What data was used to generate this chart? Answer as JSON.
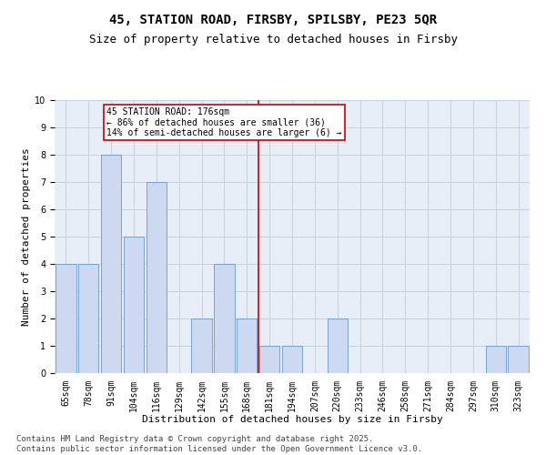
{
  "title_line1": "45, STATION ROAD, FIRSBY, SPILSBY, PE23 5QR",
  "title_line2": "Size of property relative to detached houses in Firsby",
  "xlabel": "Distribution of detached houses by size in Firsby",
  "ylabel": "Number of detached properties",
  "categories": [
    "65sqm",
    "78sqm",
    "91sqm",
    "104sqm",
    "116sqm",
    "129sqm",
    "142sqm",
    "155sqm",
    "168sqm",
    "181sqm",
    "194sqm",
    "207sqm",
    "220sqm",
    "233sqm",
    "246sqm",
    "258sqm",
    "271sqm",
    "284sqm",
    "297sqm",
    "310sqm",
    "323sqm"
  ],
  "values": [
    4,
    4,
    8,
    5,
    7,
    0,
    2,
    4,
    2,
    1,
    1,
    0,
    2,
    0,
    0,
    0,
    0,
    0,
    0,
    1,
    1
  ],
  "bar_color": "#ccd9f0",
  "bar_edge_color": "#6699cc",
  "grid_color": "#c8d0dc",
  "bg_color": "#e8eef8",
  "ref_line_color": "#cc0000",
  "annotation_line1": "45 STATION ROAD: 176sqm",
  "annotation_line2": "← 86% of detached houses are smaller (36)",
  "annotation_line3": "14% of semi-detached houses are larger (6) →",
  "ref_line_index": 8.5,
  "ylim": [
    0,
    10
  ],
  "yticks": [
    0,
    1,
    2,
    3,
    4,
    5,
    6,
    7,
    8,
    9,
    10
  ],
  "footer": "Contains HM Land Registry data © Crown copyright and database right 2025.\nContains public sector information licensed under the Open Government Licence v3.0.",
  "title_fontsize": 10,
  "subtitle_fontsize": 9,
  "xlabel_fontsize": 8,
  "ylabel_fontsize": 8,
  "tick_fontsize": 7,
  "annotation_fontsize": 7,
  "footer_fontsize": 6.5
}
